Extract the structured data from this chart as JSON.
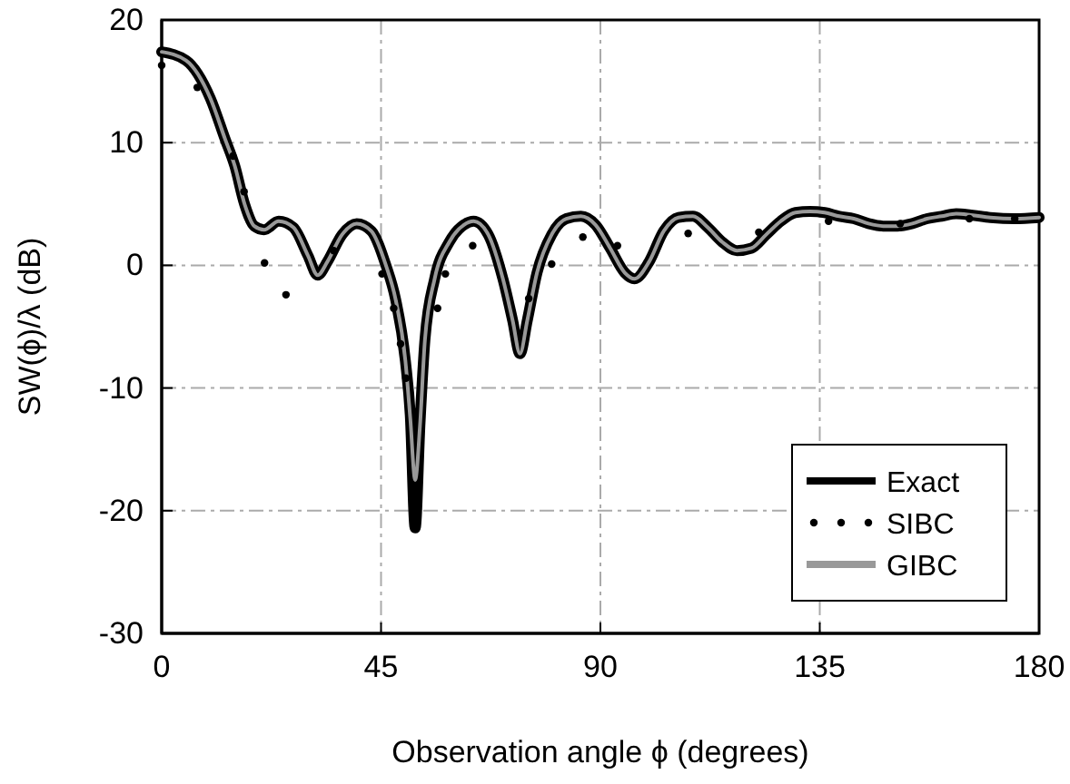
{
  "chart_data": {
    "type": "line",
    "xlabel": "Observation angle ϕ (degrees)",
    "ylabel": "SW(ϕ)/λ (dB)",
    "xlim": [
      0,
      180
    ],
    "xticks": [
      0,
      45,
      90,
      135,
      180
    ],
    "ylim": [
      -30,
      20
    ],
    "yticks": [
      -30,
      -20,
      -10,
      0,
      10,
      20
    ],
    "grid": true,
    "legend": "bottom right",
    "series": [
      {
        "name": "Exact",
        "color": "#000000",
        "line_style": "solid",
        "x": [
          0,
          5,
          10,
          13,
          15,
          17,
          19,
          21,
          24,
          27,
          30,
          32,
          34,
          37,
          40,
          43,
          46,
          48,
          50,
          51,
          52,
          53,
          54,
          56,
          59,
          62,
          64,
          67,
          70,
          72,
          73.5,
          75,
          77,
          80,
          83,
          86,
          89,
          92,
          95,
          97,
          100,
          103,
          106,
          109,
          112,
          115,
          118,
          121,
          124,
          127,
          130,
          133,
          136,
          139,
          142,
          145,
          148,
          151,
          154,
          157,
          160,
          163,
          166,
          170,
          175,
          180
        ],
        "values": [
          17.4,
          16.7,
          13.6,
          10.3,
          8.1,
          5.0,
          3.2,
          2.9,
          3.6,
          3.1,
          0.8,
          -0.8,
          0.3,
          2.5,
          3.4,
          2.8,
          0,
          -2.8,
          -7.8,
          -12.2,
          -21.4,
          -12.8,
          -6.1,
          -1.1,
          1.9,
          3.3,
          3.6,
          2.5,
          -1.1,
          -4.5,
          -7.2,
          -4.5,
          -0.6,
          2.5,
          3.8,
          4.0,
          3.3,
          1.4,
          -0.6,
          -1.1,
          0.3,
          2.8,
          3.9,
          4.0,
          3.1,
          1.9,
          1.2,
          1.4,
          2.5,
          3.6,
          4.3,
          4.4,
          4.3,
          4.0,
          3.8,
          3.4,
          3.2,
          3.2,
          3.4,
          3.8,
          4.0,
          4.2,
          4.1,
          3.9,
          3.8,
          3.9
        ]
      },
      {
        "name": "SIBC",
        "color": "#000000",
        "type": "scatter",
        "marker": "circle",
        "x": [
          0,
          7.3,
          14.6,
          16.9,
          21.1,
          25.5,
          35.3,
          45.2,
          47.6,
          49,
          50.1,
          56.6,
          58.2,
          63.8,
          75.3,
          80,
          86.4,
          93.5,
          108,
          122.5,
          136.8,
          151.5,
          165.7,
          175
        ],
        "values": [
          16.3,
          14.5,
          8.9,
          6.0,
          0.2,
          -2.4,
          1.2,
          -0.7,
          -3.5,
          -6.4,
          -9.2,
          -3.5,
          -0.7,
          1.6,
          -2.7,
          0.1,
          2.3,
          1.6,
          2.6,
          2.7,
          3.6,
          3.4,
          3.8,
          3.8
        ]
      },
      {
        "name": "GIBC",
        "color": "#999999",
        "line_style": "solid",
        "x": [
          0,
          5,
          10,
          13,
          15,
          17,
          19,
          21,
          24,
          27,
          30,
          32,
          34,
          37,
          40,
          43,
          46,
          48,
          50,
          51,
          52,
          53,
          54,
          56,
          59,
          62,
          64,
          67,
          70,
          72,
          73.5,
          75,
          77,
          80,
          83,
          86,
          89,
          92,
          95,
          97,
          100,
          103,
          106,
          109,
          112,
          115,
          118,
          121,
          124,
          127,
          130,
          133,
          136,
          139,
          142,
          145,
          148,
          151,
          154,
          157,
          160,
          163,
          166,
          170,
          175,
          180
        ],
        "values": [
          17.4,
          16.7,
          13.6,
          10.3,
          8.1,
          5.0,
          3.2,
          2.9,
          3.6,
          3.1,
          0.8,
          -0.8,
          0.3,
          2.5,
          3.4,
          2.8,
          0,
          -2.8,
          -7.8,
          -12.5,
          -17.5,
          -13,
          -6.1,
          -1.1,
          1.9,
          3.3,
          3.6,
          2.5,
          -1.1,
          -4.5,
          -7.2,
          -4.5,
          -0.6,
          2.5,
          3.8,
          4.0,
          3.3,
          1.4,
          -0.6,
          -1.1,
          0.3,
          2.8,
          3.9,
          4.0,
          3.1,
          1.9,
          1.2,
          1.4,
          2.5,
          3.6,
          4.3,
          4.4,
          4.3,
          4.0,
          3.8,
          3.4,
          3.2,
          3.2,
          3.4,
          3.8,
          4.0,
          4.2,
          4.1,
          3.9,
          3.8,
          3.9
        ]
      }
    ]
  }
}
